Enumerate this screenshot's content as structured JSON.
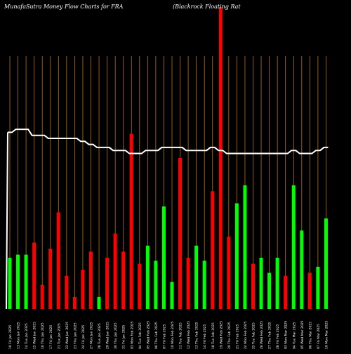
{
  "header": {
    "site_title": "MunafaSutra  Money Flow  Charts for FRA",
    "company": "(Blackrock Floating Rat"
  },
  "colors": {
    "background": "#000000",
    "grid": "#b8731a",
    "up": "#00ff00",
    "down": "#ff0000",
    "price_line": "#ffffff",
    "tick_text": "#ffffff"
  },
  "chart_data": {
    "type": "bar",
    "title": "MunafaSutra  Money Flow  Charts for FRA",
    "subtitle": "(Blackrock Floating Rat",
    "xlabel": "",
    "ylabel": "",
    "ylim": [
      0,
      100
    ],
    "grid": "vertical lines at each bar",
    "categories": [
      "10 Fri Jan 2025",
      "13 Mon Jan 2025",
      "14 Tue Jan 2025",
      "15 Wed Jan 2025",
      "16 Thu Jan 2025",
      "17 Fri Jan 2025",
      "21 Tue Jan 2025",
      "22 Wed Jan 2025",
      "23 Thu Jan 2025",
      "24 Fri Jan 2025",
      "27 Mon Jan 2025",
      "28 Tue Jan 2025",
      "29 Wed Jan 2025",
      "30 Thu Jan 2025",
      "31 Fri Jan 2025",
      "03 Mon Feb 2025",
      "04 Tue Feb 2025",
      "05 Wed Feb 2025",
      "06 Thu Feb 2025",
      "07 Fri Feb 2025",
      "10 Mon Feb 2025",
      "11 Tue Feb 2025",
      "12 Wed Feb 2025",
      "13 Thu Feb 2025",
      "14 Fri Feb 2025",
      "18 Tue Feb 2025",
      "19 Wed Feb 2025",
      "20 Thu Feb 2025",
      "21 Fri Feb 2025",
      "24 Mon Feb 2025",
      "25 Tue Feb 2025",
      "26 Wed Feb 2025",
      "27 Thu Feb 2025",
      "28 Fri Feb 2025",
      "03 Mon Mar 2025",
      "04 Tue Mar 2025",
      "05 Wed Mar 2025",
      "06 Thu Mar 2025",
      "07 Fri Mar 2025",
      "10 Mon Mar 2025"
    ],
    "tick_labels": [
      "10 Fri Jan 2025",
      "13 Mon Jan 2025",
      "14 Tue Jan 2025",
      "15 Wed Jan 2025",
      "16 Thu Jan 2025",
      "17 Fri Jan 2025",
      "21 Tue Jan 2025",
      "22 Wed Jan 2025",
      "23 Thu Jan 2025",
      "24 Fri Jan 2025",
      "27 Mon Jan 2025",
      "28 Tue Jan 2025",
      "29 Wed Jan 2025",
      "30 Thu Jan 2025",
      "31 Fri Jan 2025",
      "03 Mon Feb 2025",
      "04 Tue Feb 2025",
      "05 Wed Feb 2025",
      "06 Thu Feb 2025",
      "07 Fri Feb 2025",
      "10 Mon Feb 2025",
      "11 Tue Feb 2025",
      "12 Wed Feb 2025",
      "13 Thu Feb 2025",
      "14 Fri Feb 2025",
      "18 Tue Feb 2025",
      "19 Wed Feb 2025",
      "20 Thu Feb 2025",
      "21 Fri Feb 2025",
      "24 Mon Feb 2025",
      "25 Tue Feb 2025",
      "26 Wed Feb 2025",
      "27 Thu Feb 2025",
      "28 Fri Feb 2025",
      "03 Mon Mar 2025",
      "04 Tue Mar 2025",
      "05 Wed Mar 2025",
      "06 Thu Mar 2025",
      "07 Fri Mar 2025",
      "10 Mon Mar 2025"
    ],
    "volume_flow": [
      17,
      18,
      18,
      22,
      8,
      20,
      32,
      11,
      4,
      13,
      19,
      4,
      17,
      25,
      19,
      58,
      15,
      21,
      16,
      34,
      9,
      50,
      17,
      21,
      16,
      39,
      100,
      24,
      35,
      41,
      15,
      17,
      12,
      17,
      11,
      41,
      26,
      12,
      14,
      30
    ],
    "direction": [
      "up",
      "up",
      "up",
      "down",
      "down",
      "down",
      "down",
      "down",
      "down",
      "down",
      "down",
      "up",
      "down",
      "down",
      "down",
      "down",
      "down",
      "up",
      "up",
      "up",
      "up",
      "down",
      "down",
      "up",
      "up",
      "down",
      "down",
      "down",
      "up",
      "up",
      "down",
      "up",
      "up",
      "up",
      "down",
      "up",
      "up",
      "down",
      "up",
      "up"
    ],
    "price_line": [
      62,
      63,
      63,
      61,
      61,
      60,
      60,
      60,
      60,
      59,
      58,
      57,
      57,
      56,
      56,
      55,
      55,
      56,
      56,
      57,
      57,
      57,
      56,
      56,
      56,
      57,
      56,
      55,
      55,
      55,
      55,
      55,
      55,
      55,
      55,
      56,
      55,
      55,
      56,
      57
    ]
  }
}
